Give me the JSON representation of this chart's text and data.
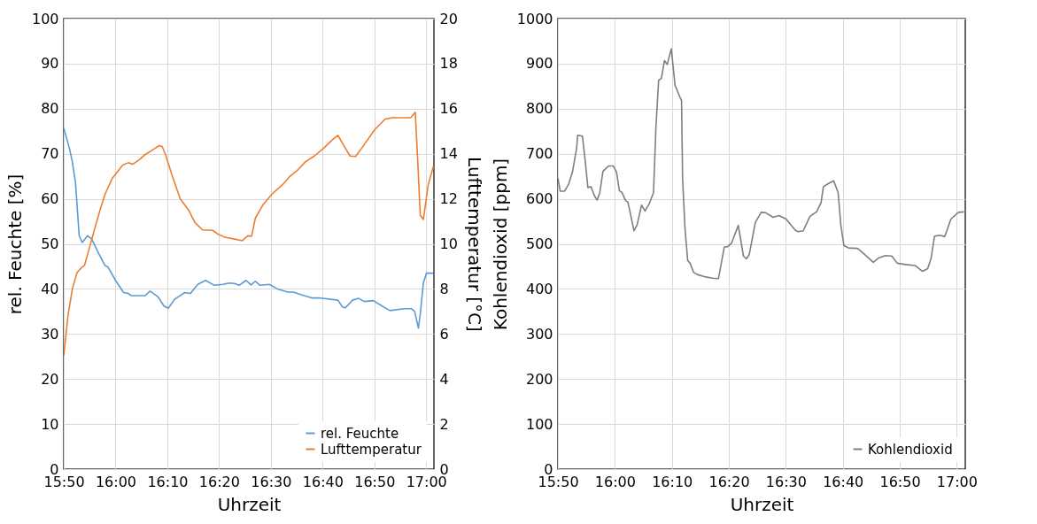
{
  "chart_data": [
    {
      "type": "line",
      "xlabel": "Uhrzeit",
      "ylabel": "rel. Feuchte [%]",
      "y2label": "Lufttemperatur [°C]",
      "xlim": [
        15.8333,
        17.025
      ],
      "xticks": [
        {
          "value": 15.8333,
          "label": "15:50"
        },
        {
          "value": 16,
          "label": "16:00"
        },
        {
          "value": 16.1667,
          "label": "16:10"
        },
        {
          "value": 16.3333,
          "label": "16:20"
        },
        {
          "value": 16.5,
          "label": "16:30"
        },
        {
          "value": 16.6667,
          "label": "16:40"
        },
        {
          "value": 16.8333,
          "label": "16:50"
        },
        {
          "value": 17,
          "label": "17:00"
        }
      ],
      "ylim": [
        0,
        100
      ],
      "yticks": [
        0,
        10,
        20,
        30,
        40,
        50,
        60,
        70,
        80,
        90,
        100
      ],
      "y2lim": [
        0,
        20
      ],
      "y2ticks": [
        0,
        2,
        4,
        6,
        8,
        10,
        12,
        14,
        16,
        18,
        20
      ],
      "grid": true,
      "legend": "bottom right",
      "series": [
        {
          "name": "rel. Feuchte",
          "color": "#5b9bd5",
          "x": [
            15.8333,
            15.852,
            15.861,
            15.871,
            15.883,
            15.893,
            15.91,
            15.923,
            15.946,
            15.966,
            15.975,
            16.0,
            16.026,
            16.041,
            16.051,
            16.095,
            16.111,
            16.136,
            16.156,
            16.17,
            16.19,
            16.223,
            16.241,
            16.265,
            16.29,
            16.318,
            16.346,
            16.365,
            16.383,
            16.398,
            16.42,
            16.436,
            16.45,
            16.465,
            16.495,
            16.521,
            16.555,
            16.573,
            16.598,
            16.631,
            16.655,
            16.716,
            16.73,
            16.74,
            16.763,
            16.783,
            16.801,
            16.83,
            16.858,
            16.883,
            16.93,
            16.953,
            16.963,
            16.975,
            16.981,
            16.991,
            17.001,
            17.023
          ],
          "values": [
            75.7,
            71.1,
            68.2,
            63.6,
            51.8,
            50.3,
            51.8,
            51.1,
            47.8,
            45.2,
            44.9,
            41.9,
            39.2,
            39.0,
            38.5,
            38.5,
            39.5,
            38.3,
            36.2,
            35.7,
            37.7,
            39.2,
            39.0,
            41.0,
            41.9,
            40.8,
            41.0,
            41.3,
            41.2,
            40.8,
            41.9,
            40.9,
            41.7,
            40.8,
            41.0,
            40.0,
            39.3,
            39.3,
            38.7,
            38.0,
            38.0,
            37.5,
            36.0,
            35.8,
            37.5,
            37.9,
            37.2,
            37.4,
            36.2,
            35.2,
            35.6,
            35.6,
            35.0,
            31.3,
            34.4,
            41.3,
            43.5,
            43.5
          ]
        },
        {
          "name": "Lufttemperatur",
          "color": "#ed7d31",
          "axis": "y2",
          "x": [
            15.8333,
            15.847,
            15.861,
            15.876,
            15.89,
            15.9,
            15.913,
            15.933,
            15.951,
            15.966,
            15.99,
            16.023,
            16.041,
            16.056,
            16.075,
            16.095,
            16.118,
            16.141,
            16.15,
            16.161,
            16.18,
            16.208,
            16.236,
            16.256,
            16.28,
            16.313,
            16.331,
            16.351,
            16.38,
            16.408,
            16.426,
            16.438,
            16.45,
            16.475,
            16.503,
            16.54,
            16.56,
            16.588,
            16.611,
            16.64,
            16.668,
            16.698,
            16.716,
            16.735,
            16.755,
            16.773,
            16.791,
            16.835,
            16.868,
            16.891,
            16.95,
            16.965,
            16.973,
            16.981,
            16.991,
            17.006,
            17.023
          ],
          "values": [
            5.04,
            6.82,
            8.0,
            8.72,
            8.94,
            9.04,
            9.68,
            10.68,
            11.54,
            12.2,
            12.92,
            13.5,
            13.6,
            13.54,
            13.72,
            13.96,
            14.16,
            14.36,
            14.32,
            13.96,
            13.12,
            12.0,
            11.48,
            10.94,
            10.62,
            10.6,
            10.42,
            10.3,
            10.22,
            10.14,
            10.36,
            10.34,
            11.14,
            11.74,
            12.2,
            12.66,
            12.98,
            13.3,
            13.64,
            13.9,
            14.22,
            14.62,
            14.82,
            14.36,
            13.9,
            13.88,
            14.22,
            15.08,
            15.54,
            15.6,
            15.6,
            15.84,
            13.64,
            11.28,
            11.08,
            12.58,
            13.44
          ]
        }
      ]
    },
    {
      "type": "line",
      "xlabel": "Uhrzeit",
      "ylabel": "Kohlendioxid [ppm]",
      "xlim": [
        15.8333,
        17.025
      ],
      "xticks": [
        {
          "value": 15.8333,
          "label": "15:50"
        },
        {
          "value": 16,
          "label": "16:00"
        },
        {
          "value": 16.1667,
          "label": "16:10"
        },
        {
          "value": 16.3333,
          "label": "16:20"
        },
        {
          "value": 16.5,
          "label": "16:30"
        },
        {
          "value": 16.6667,
          "label": "16:40"
        },
        {
          "value": 16.8333,
          "label": "16:50"
        },
        {
          "value": 17,
          "label": "17:00"
        }
      ],
      "ylim": [
        0,
        1000
      ],
      "yticks": [
        0,
        100,
        200,
        300,
        400,
        500,
        600,
        700,
        800,
        900,
        1000
      ],
      "grid": true,
      "legend": "bottom right",
      "series": [
        {
          "name": "Kohlendioxid",
          "color": "#7f7f7f",
          "x": [
            15.8333,
            15.84,
            15.853,
            15.865,
            15.876,
            15.888,
            15.891,
            15.905,
            15.913,
            15.921,
            15.93,
            15.94,
            15.948,
            15.956,
            15.965,
            15.982,
            15.995,
            16.005,
            16.013,
            16.021,
            16.031,
            16.038,
            16.056,
            16.065,
            16.078,
            16.088,
            16.1,
            16.113,
            16.12,
            16.128,
            16.136,
            16.145,
            16.153,
            16.165,
            16.176,
            16.19,
            16.195,
            16.198,
            16.205,
            16.213,
            16.22,
            16.23,
            16.241,
            16.263,
            16.285,
            16.303,
            16.32,
            16.328,
            16.341,
            16.361,
            16.376,
            16.385,
            16.393,
            16.411,
            16.428,
            16.441,
            16.463,
            16.48,
            16.501,
            16.528,
            16.536,
            16.551,
            16.57,
            16.58,
            16.59,
            16.603,
            16.61,
            16.623,
            16.64,
            16.653,
            16.661,
            16.67,
            16.683,
            16.71,
            16.731,
            16.756,
            16.77,
            16.791,
            16.81,
            16.826,
            16.851,
            16.878,
            16.9,
            16.915,
            16.925,
            16.935,
            16.951,
            16.965,
            16.983,
            17.005,
            17.021
          ],
          "values": [
            646,
            617,
            617,
            633,
            660,
            712,
            741,
            739,
            686,
            625,
            627,
            607,
            597,
            614,
            661,
            673,
            673,
            659,
            618,
            614,
            596,
            593,
            529,
            542,
            586,
            573,
            588,
            614,
            758,
            863,
            867,
            907,
            898,
            933,
            852,
            826,
            818,
            646,
            535,
            463,
            457,
            437,
            432,
            427,
            424,
            423,
            493,
            493,
            501,
            541,
            473,
            467,
            476,
            548,
            570,
            569,
            559,
            563,
            555,
            530,
            527,
            529,
            560,
            566,
            571,
            591,
            627,
            633,
            640,
            614,
            542,
            496,
            491,
            490,
            476,
            459,
            468,
            474,
            473,
            457,
            454,
            452,
            439,
            445,
            468,
            517,
            519,
            516,
            555,
            570,
            571
          ]
        }
      ]
    }
  ]
}
